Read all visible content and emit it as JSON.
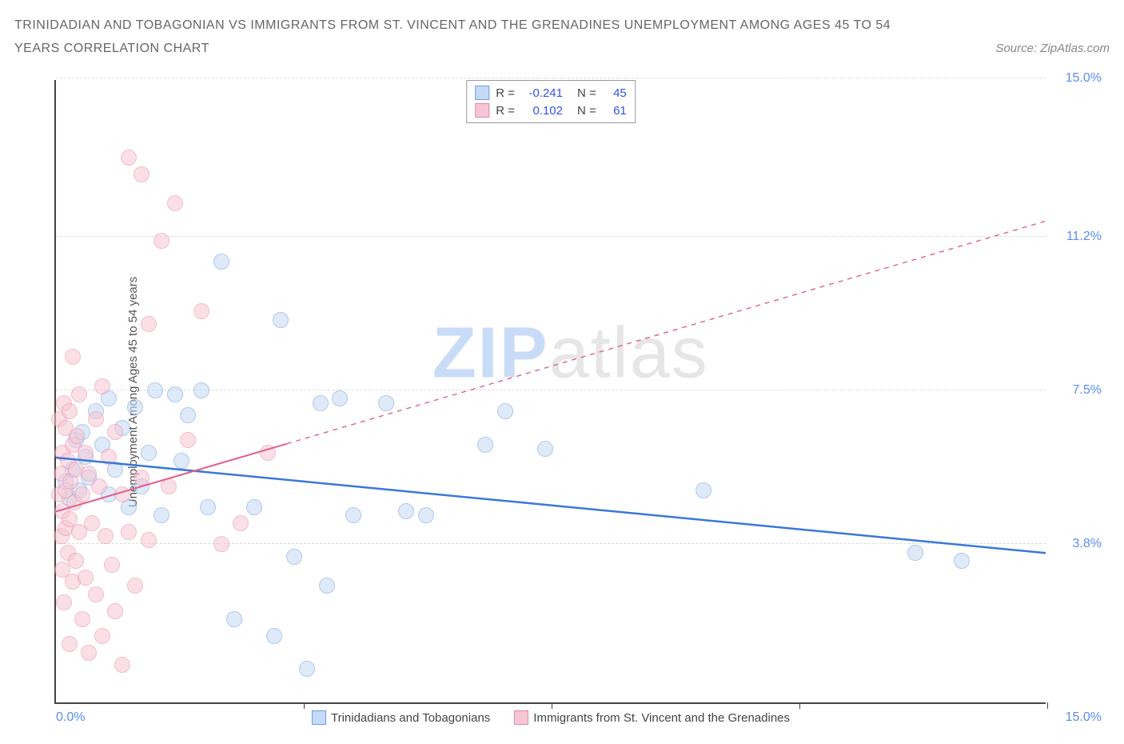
{
  "title": "TRINIDADIAN AND TOBAGONIAN VS IMMIGRANTS FROM ST. VINCENT AND THE GRENADINES UNEMPLOYMENT AMONG AGES 45 TO 54 YEARS CORRELATION CHART",
  "source": "Source: ZipAtlas.com",
  "y_axis_label": "Unemployment Among Ages 45 to 54 years",
  "watermark_a": "ZIP",
  "watermark_b": "atlas",
  "chart": {
    "type": "scatter",
    "xlim": [
      0,
      15
    ],
    "ylim": [
      0,
      15
    ],
    "background_color": "#ffffff",
    "grid_color": "#dddddd",
    "axis_color": "#444444",
    "gridlines_y": [
      3.8,
      7.5,
      11.2,
      15.0
    ],
    "y_ticks": [
      {
        "value": 3.8,
        "label": "3.8%"
      },
      {
        "value": 7.5,
        "label": "7.5%"
      },
      {
        "value": 11.2,
        "label": "11.2%"
      },
      {
        "value": 15.0,
        "label": "15.0%"
      }
    ],
    "x_ticks_minor": [
      3.75,
      7.5,
      11.25,
      15.0
    ],
    "x_tick_left": "0.0%",
    "x_tick_right": "15.0%",
    "tick_label_color": "#5b8def",
    "tick_label_fontsize": 16
  },
  "series": [
    {
      "key": "blue",
      "name": "Trinidadians and Tobagonians",
      "fill": "#c6d9f5",
      "stroke": "#6f9edb",
      "fill_opacity": 0.55,
      "radius": 10,
      "r_label": "R =",
      "r_value": "-0.241",
      "n_label": "N =",
      "n_value": "45",
      "trend": {
        "x1": 0,
        "y1": 5.9,
        "x2": 15,
        "y2": 3.6,
        "solid_until_x": 15,
        "color": "#3b78d8",
        "width": 2.5
      },
      "points": [
        [
          0.15,
          5.3
        ],
        [
          0.2,
          4.9
        ],
        [
          0.25,
          5.6
        ],
        [
          0.3,
          6.3
        ],
        [
          0.35,
          5.1
        ],
        [
          0.4,
          6.5
        ],
        [
          0.45,
          5.9
        ],
        [
          0.5,
          5.4
        ],
        [
          0.6,
          7.0
        ],
        [
          0.7,
          6.2
        ],
        [
          0.8,
          5.0
        ],
        [
          0.8,
          7.3
        ],
        [
          0.9,
          5.6
        ],
        [
          1.0,
          6.6
        ],
        [
          1.1,
          4.7
        ],
        [
          1.2,
          7.1
        ],
        [
          1.3,
          5.2
        ],
        [
          1.4,
          6.0
        ],
        [
          1.5,
          7.5
        ],
        [
          1.6,
          4.5
        ],
        [
          1.8,
          7.4
        ],
        [
          1.9,
          5.8
        ],
        [
          2.0,
          6.9
        ],
        [
          2.2,
          7.5
        ],
        [
          2.3,
          4.7
        ],
        [
          2.5,
          10.6
        ],
        [
          2.7,
          2.0
        ],
        [
          3.0,
          4.7
        ],
        [
          3.3,
          1.6
        ],
        [
          3.4,
          9.2
        ],
        [
          3.6,
          3.5
        ],
        [
          3.8,
          0.8
        ],
        [
          4.0,
          7.2
        ],
        [
          4.1,
          2.8
        ],
        [
          4.3,
          7.3
        ],
        [
          4.5,
          4.5
        ],
        [
          5.0,
          7.2
        ],
        [
          5.3,
          4.6
        ],
        [
          5.6,
          4.5
        ],
        [
          6.5,
          6.2
        ],
        [
          6.8,
          7.0
        ],
        [
          7.4,
          6.1
        ],
        [
          9.8,
          5.1
        ],
        [
          13.0,
          3.6
        ],
        [
          13.7,
          3.4
        ]
      ]
    },
    {
      "key": "pink",
      "name": "Immigrants from St. Vincent and the Grenadines",
      "fill": "#f7c6d4",
      "stroke": "#e68aa4",
      "fill_opacity": 0.55,
      "radius": 10,
      "r_label": "R =",
      "r_value": "0.102",
      "n_label": "N =",
      "n_value": "61",
      "trend": {
        "x1": 0,
        "y1": 4.6,
        "x2": 15,
        "y2": 11.6,
        "solid_until_x": 3.5,
        "color": "#e06088",
        "width": 2,
        "dash": "6,6"
      },
      "points": [
        [
          0.05,
          5.0
        ],
        [
          0.05,
          6.8
        ],
        [
          0.08,
          4.0
        ],
        [
          0.08,
          5.5
        ],
        [
          0.1,
          3.2
        ],
        [
          0.1,
          6.0
        ],
        [
          0.1,
          4.6
        ],
        [
          0.12,
          7.2
        ],
        [
          0.12,
          2.4
        ],
        [
          0.15,
          5.1
        ],
        [
          0.15,
          4.2
        ],
        [
          0.15,
          6.6
        ],
        [
          0.18,
          3.6
        ],
        [
          0.18,
          5.8
        ],
        [
          0.2,
          4.4
        ],
        [
          0.2,
          7.0
        ],
        [
          0.2,
          1.4
        ],
        [
          0.22,
          5.3
        ],
        [
          0.25,
          2.9
        ],
        [
          0.25,
          6.2
        ],
        [
          0.25,
          8.3
        ],
        [
          0.28,
          4.8
        ],
        [
          0.3,
          5.6
        ],
        [
          0.3,
          3.4
        ],
        [
          0.32,
          6.4
        ],
        [
          0.35,
          4.1
        ],
        [
          0.35,
          7.4
        ],
        [
          0.4,
          2.0
        ],
        [
          0.4,
          5.0
        ],
        [
          0.45,
          6.0
        ],
        [
          0.45,
          3.0
        ],
        [
          0.5,
          5.5
        ],
        [
          0.5,
          1.2
        ],
        [
          0.55,
          4.3
        ],
        [
          0.6,
          6.8
        ],
        [
          0.6,
          2.6
        ],
        [
          0.65,
          5.2
        ],
        [
          0.7,
          1.6
        ],
        [
          0.7,
          7.6
        ],
        [
          0.75,
          4.0
        ],
        [
          0.8,
          5.9
        ],
        [
          0.85,
          3.3
        ],
        [
          0.9,
          2.2
        ],
        [
          0.9,
          6.5
        ],
        [
          1.0,
          0.9
        ],
        [
          1.0,
          5.0
        ],
        [
          1.1,
          4.1
        ],
        [
          1.1,
          13.1
        ],
        [
          1.2,
          2.8
        ],
        [
          1.3,
          12.7
        ],
        [
          1.3,
          5.4
        ],
        [
          1.4,
          9.1
        ],
        [
          1.4,
          3.9
        ],
        [
          1.6,
          11.1
        ],
        [
          1.7,
          5.2
        ],
        [
          1.8,
          12.0
        ],
        [
          2.0,
          6.3
        ],
        [
          2.2,
          9.4
        ],
        [
          2.5,
          3.8
        ],
        [
          2.8,
          4.3
        ],
        [
          3.2,
          6.0
        ]
      ]
    }
  ],
  "legend_bottom": [
    {
      "swatch_fill": "#c6d9f5",
      "swatch_stroke": "#6f9edb",
      "label": "Trinidadians and Tobagonians"
    },
    {
      "swatch_fill": "#f7c6d4",
      "swatch_stroke": "#e68aa4",
      "label": "Immigrants from St. Vincent and the Grenadines"
    }
  ]
}
